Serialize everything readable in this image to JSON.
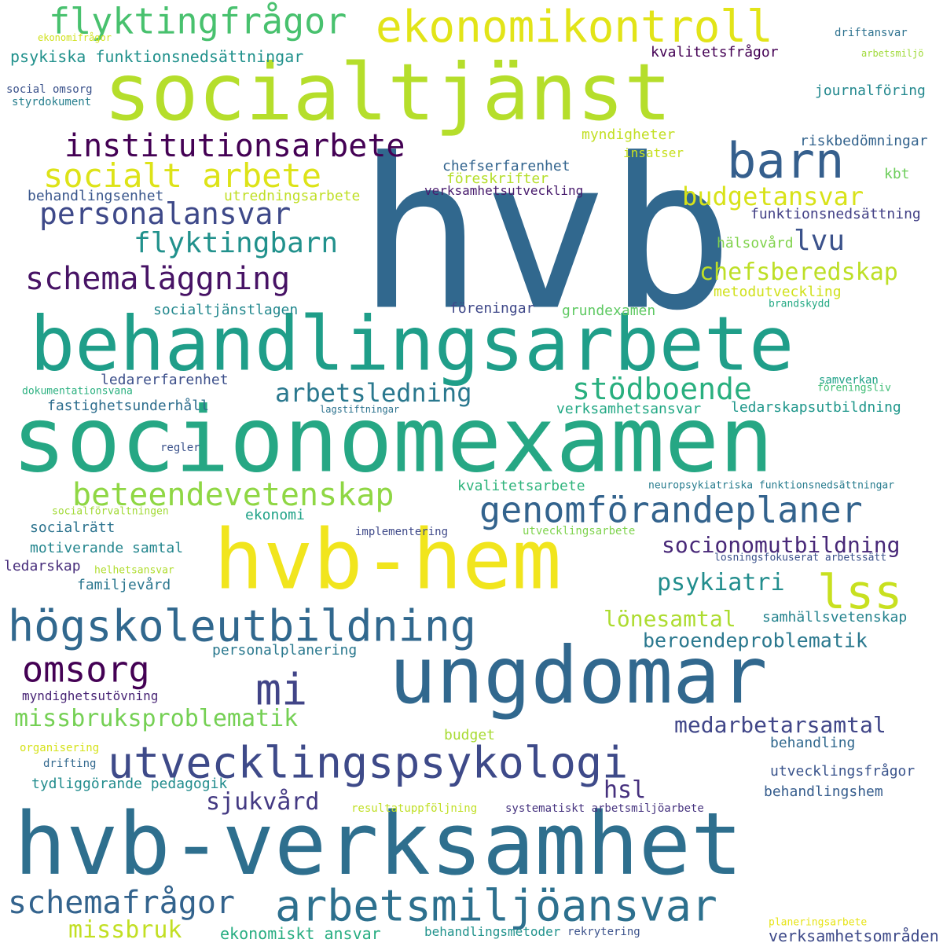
{
  "words": [
    {
      "text": "hvb",
      "color": "#31688e"
    },
    {
      "text": "socialtjänst",
      "color": "#b5de2b"
    },
    {
      "text": "behandlingsarbete",
      "color": "#1f9e89"
    },
    {
      "text": "socionomexamen",
      "color": "#26a784"
    },
    {
      "text": "hvb-hem",
      "color": "#f1e51d"
    },
    {
      "text": "ungdomar",
      "color": "#31688e"
    },
    {
      "text": "hvb-verksamhet",
      "color": "#2e6f8e"
    },
    {
      "text": "ekonomikontroll",
      "color": "#e2e418"
    },
    {
      "text": "flyktingfrågor",
      "color": "#48c16e"
    },
    {
      "text": "barn",
      "color": "#355f8d"
    },
    {
      "text": "institutionsarbete",
      "color": "#440154"
    },
    {
      "text": "socialt arbete",
      "color": "#dde318"
    },
    {
      "text": "personalansvar",
      "color": "#3e4989"
    },
    {
      "text": "flyktingbarn",
      "color": "#21918c"
    },
    {
      "text": "schemaläggning",
      "color": "#471365"
    },
    {
      "text": "budgetansvar",
      "color": "#d8e219"
    },
    {
      "text": "lvu",
      "color": "#3b528b"
    },
    {
      "text": "chefsberedskap",
      "color": "#bddf26"
    },
    {
      "text": "arbetsledning",
      "color": "#2a788e"
    },
    {
      "text": "stödboende",
      "color": "#29af7f"
    },
    {
      "text": "beteendevetenskap",
      "color": "#8fd744"
    },
    {
      "text": "genomförandeplaner",
      "color": "#33638d"
    },
    {
      "text": "psykiatri",
      "color": "#228d8d"
    },
    {
      "text": "socionomutbildning",
      "color": "#482878"
    },
    {
      "text": "lss",
      "color": "#c8e020"
    },
    {
      "text": "högskoleutbildning",
      "color": "#31688e"
    },
    {
      "text": "omsorg",
      "color": "#440154"
    },
    {
      "text": "mi",
      "color": "#414487"
    },
    {
      "text": "lönesamtal",
      "color": "#addc30"
    },
    {
      "text": "beroendeproblematik",
      "color": "#2a788e"
    },
    {
      "text": "missbruksproblematik",
      "color": "#75d054"
    },
    {
      "text": "medarbetarsamtal",
      "color": "#404688"
    },
    {
      "text": "utvecklingspsykologi",
      "color": "#3e4a89"
    },
    {
      "text": "hsl",
      "color": "#46317e"
    },
    {
      "text": "sjukvård",
      "color": "#443a83"
    },
    {
      "text": "schemafrågor",
      "color": "#33638d"
    },
    {
      "text": "arbetsmiljöansvar",
      "color": "#2d708e"
    },
    {
      "text": "missbruk",
      "color": "#c2df23"
    },
    {
      "text": "ekonomiskt ansvar",
      "color": "#27ad81"
    },
    {
      "text": "behandlingsmetoder",
      "color": "#20928c"
    },
    {
      "text": "rekrytering",
      "color": "#3b528b"
    },
    {
      "text": "verksamhetsområden",
      "color": "#3e4a89"
    },
    {
      "text": "psykiska funktionsnedsättningar",
      "color": "#21918c"
    },
    {
      "text": "kvalitetsfrågor",
      "color": "#440154"
    },
    {
      "text": "social omsorg",
      "color": "#3b528b"
    },
    {
      "text": "styrdokument",
      "color": "#277f8e"
    },
    {
      "text": "journalföring",
      "color": "#23888e"
    },
    {
      "text": "ekonomifrågor",
      "color": "#d0e11c"
    },
    {
      "text": "driftansvar",
      "color": "#2c718e"
    },
    {
      "text": "arbetsmiljö",
      "color": "#a0da39"
    },
    {
      "text": "myndigheter",
      "color": "#c2df23"
    },
    {
      "text": "insatser",
      "color": "#c8e020"
    },
    {
      "text": "riskbedömningar",
      "color": "#33638d"
    },
    {
      "text": "chefserfarenhet",
      "color": "#32648e"
    },
    {
      "text": "föreskrifter",
      "color": "#b5de2b"
    },
    {
      "text": "verksamhetsutveckling",
      "color": "#481b6d"
    },
    {
      "text": "kbt",
      "color": "#6ccd5a"
    },
    {
      "text": "behandlingsenhet",
      "color": "#39568c"
    },
    {
      "text": "utredningsarbete",
      "color": "#c0df25"
    },
    {
      "text": "funktionsnedsättning",
      "color": "#424086"
    },
    {
      "text": "hälsovård",
      "color": "#81d34d"
    },
    {
      "text": "metodutveckling",
      "color": "#d0e11c"
    },
    {
      "text": "brandskydd",
      "color": "#23a983"
    },
    {
      "text": "socialtjänstlagen",
      "color": "#23888e"
    },
    {
      "text": "föreningar",
      "color": "#3f4889"
    },
    {
      "text": "grundexamen",
      "color": "#5ec962"
    },
    {
      "text": "ledarerfarenhet",
      "color": "#3c4f8a"
    },
    {
      "text": "samverkan",
      "color": "#1fa187"
    },
    {
      "text": "dokumentationsvana",
      "color": "#2ab07f"
    },
    {
      "text": "föreningsliv",
      "color": "#3dbc74"
    },
    {
      "text": "fastighetsunderhåll",
      "color": "#2e6e8e"
    },
    {
      "text": "lagstiftningar",
      "color": "#2c728e"
    },
    {
      "text": "verksamhetsansvar",
      "color": "#22a884"
    },
    {
      "text": "ledarskapsutbildning",
      "color": "#1f978b"
    },
    {
      "text": "regler",
      "color": "#3b528b"
    },
    {
      "text": "kvalitetsarbete",
      "color": "#2fb47c"
    },
    {
      "text": "neuropsykiatriska funktionsnedsättningar",
      "color": "#287c8e"
    },
    {
      "text": "socialförvaltningen",
      "color": "#a2da37"
    },
    {
      "text": "ekonomi",
      "color": "#1fa287"
    },
    {
      "text": "socialrätt",
      "color": "#2c738e"
    },
    {
      "text": "motiverande samtal",
      "color": "#24868e"
    },
    {
      "text": "implementering",
      "color": "#3e4989"
    },
    {
      "text": "utvecklingsarbete",
      "color": "#7fd34e"
    },
    {
      "text": "ledarskap",
      "color": "#472d7b"
    },
    {
      "text": "helhetsansvar",
      "color": "#b0dd2f"
    },
    {
      "text": "losningsfokuserat arbetssätt",
      "color": "#3b528b"
    },
    {
      "text": "familjevård",
      "color": "#2a768e"
    },
    {
      "text": "samhällsvetenskap",
      "color": "#25838e"
    },
    {
      "text": "personalplanering",
      "color": "#2a788e"
    },
    {
      "text": "myndighetsutövning",
      "color": "#482475"
    },
    {
      "text": "organisering",
      "color": "#d5e21a"
    },
    {
      "text": "budget",
      "color": "#a8db34"
    },
    {
      "text": "behandling",
      "color": "#31688e"
    },
    {
      "text": "drifting",
      "color": "#31688e"
    },
    {
      "text": "utvecklingsfrågor",
      "color": "#3a548c"
    },
    {
      "text": "tydliggörande pedagogik",
      "color": "#228c8d"
    },
    {
      "text": "behandlingshem",
      "color": "#365d8d"
    },
    {
      "text": "resultatuppföljning",
      "color": "#c0df25"
    },
    {
      "text": "systematiskt arbetsmiljöarbete",
      "color": "#46337f"
    },
    {
      "text": "planeringsarbete",
      "color": "#e7e419"
    }
  ]
}
